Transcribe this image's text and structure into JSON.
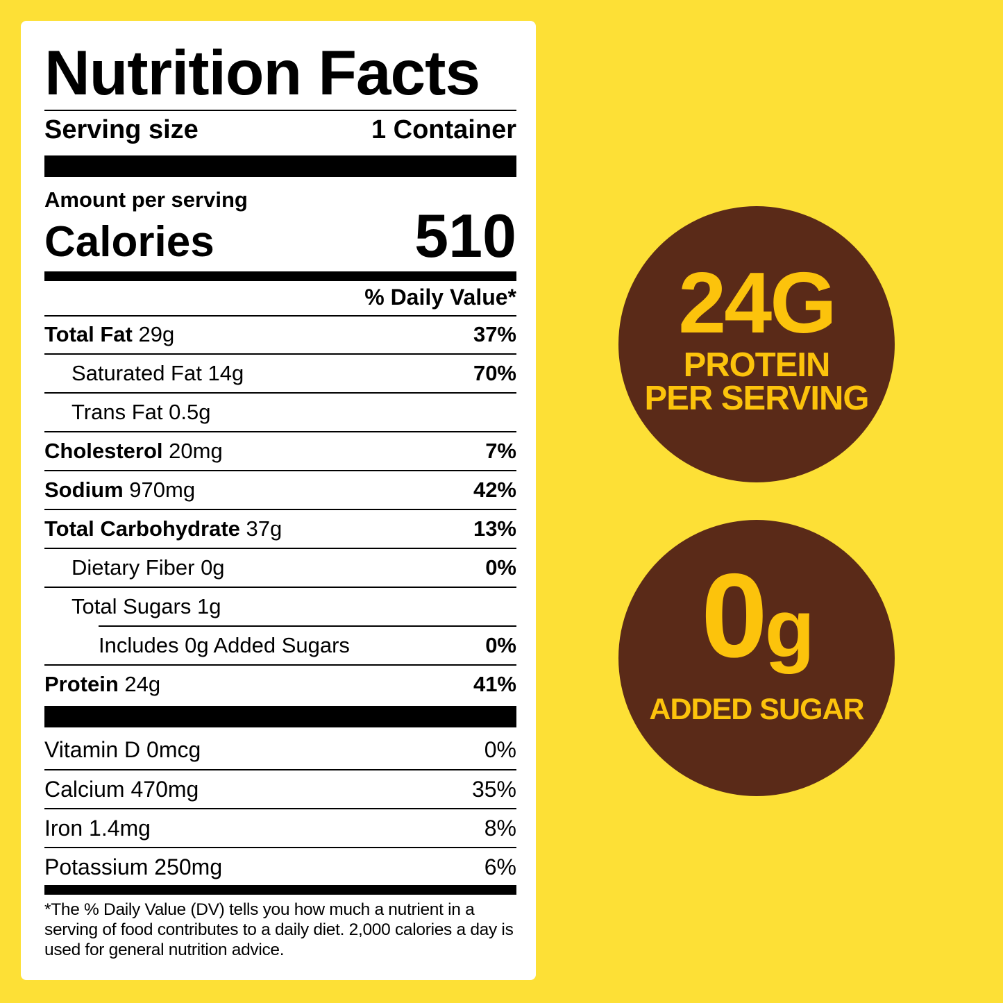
{
  "label": {
    "title": "Nutrition Facts",
    "serving_size_label": "Serving size",
    "serving_size_value": "1 Container",
    "amount_per_serving": "Amount per serving",
    "calories_label": "Calories",
    "calories_value": "510",
    "daily_value_header": "% Daily Value*",
    "nutrients": [
      {
        "name": "Total Fat",
        "amount": "29g",
        "dv": "37%"
      },
      {
        "name": "Saturated Fat",
        "amount": "14g",
        "dv": "70%"
      },
      {
        "name": "Trans Fat",
        "amount": "0.5g",
        "dv": ""
      },
      {
        "name": "Cholesterol",
        "amount": "20mg",
        "dv": "7%"
      },
      {
        "name": "Sodium",
        "amount": "970mg",
        "dv": "42%"
      },
      {
        "name": "Total Carbohydrate",
        "amount": "37g",
        "dv": "13%"
      },
      {
        "name": "Dietary Fiber",
        "amount": "0g",
        "dv": "0%"
      },
      {
        "name": "Total Sugars",
        "amount": "1g",
        "dv": ""
      },
      {
        "name": "Includes 0g Added Sugars",
        "amount": "",
        "dv": "0%"
      },
      {
        "name": "Protein",
        "amount": "24g",
        "dv": "41%"
      }
    ],
    "vitamins": [
      {
        "name": "Vitamin D 0mcg",
        "dv": "0%"
      },
      {
        "name": "Calcium 470mg",
        "dv": "35%"
      },
      {
        "name": "Iron 1.4mg",
        "dv": "8%"
      },
      {
        "name": "Potassium 250mg",
        "dv": "6%"
      }
    ],
    "footnote": "*The % Daily Value (DV) tells you how much a nutrient in a serving of food contributes to a daily diet. 2,000 calories a day is used for general nutrition advice."
  },
  "badges": {
    "protein_big": "24G",
    "protein_line1": "PROTEIN",
    "protein_line2": "PER SERVING",
    "sugar_big_number": "0",
    "sugar_big_unit": "g",
    "sugar_small": "ADDED SUGAR"
  },
  "colors": {
    "background": "#fde036",
    "badge_fill": "#5a2a18",
    "badge_text": "#fcc30c"
  }
}
